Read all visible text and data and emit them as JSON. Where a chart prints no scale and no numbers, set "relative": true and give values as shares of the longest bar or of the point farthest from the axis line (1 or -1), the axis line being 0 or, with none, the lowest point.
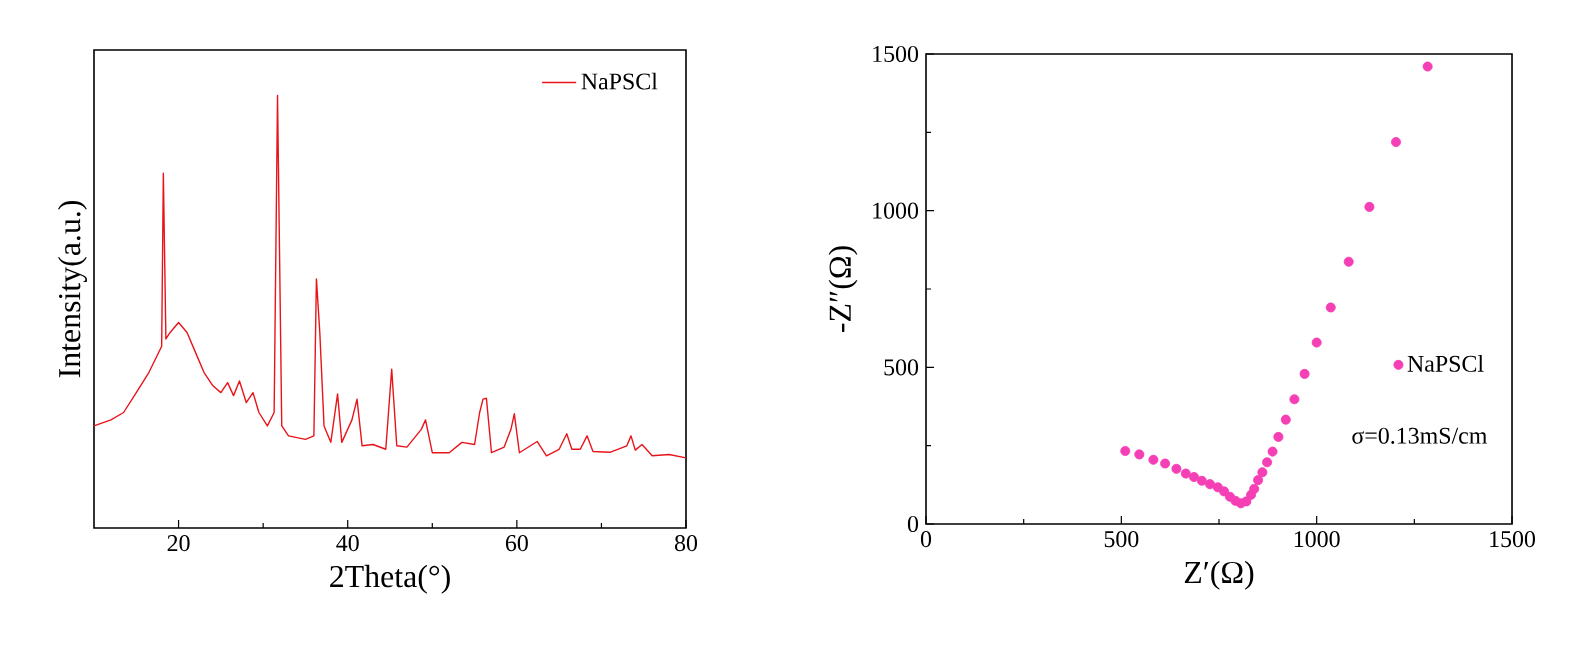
{
  "chart_data": [
    {
      "type": "line",
      "relative": true,
      "xlabel": "2Theta(°)",
      "ylabel": "Intensity(a.u.)",
      "xlim": [
        10,
        80
      ],
      "xticks": [
        20,
        40,
        60,
        80
      ],
      "legend": "top right",
      "tick_labels": "x",
      "marker": "none",
      "line_style": "solid",
      "series": [
        {
          "name": "NaPSCl",
          "color": "#e8141a",
          "x": [
            10,
            12,
            13.5,
            15,
            16.5,
            17.5,
            18.0,
            18.2,
            18.5,
            19,
            20,
            21,
            22,
            23,
            24,
            25,
            25.8,
            26.5,
            27.2,
            28,
            28.8,
            29.5,
            30.5,
            31.3,
            31.7,
            32.2,
            33,
            35,
            36,
            36.3,
            36.7,
            37.2,
            38,
            38.8,
            39.3,
            40.5,
            41.1,
            41.7,
            43,
            44.5,
            45.2,
            45.8,
            47,
            48.7,
            49.2,
            50,
            52,
            53.5,
            55,
            55.6,
            56,
            56.4,
            57,
            58.5,
            59.3,
            59.7,
            60.3,
            62.4,
            63.5,
            65,
            65.9,
            66.5,
            67.5,
            68.3,
            69,
            71,
            73,
            73.5,
            74,
            74.8,
            76,
            78,
            80
          ],
          "values": [
            0.236,
            0.25,
            0.267,
            0.313,
            0.36,
            0.4,
            0.42,
            0.82,
            0.437,
            0.452,
            0.475,
            0.452,
            0.406,
            0.36,
            0.33,
            0.313,
            0.336,
            0.306,
            0.34,
            0.29,
            0.313,
            0.267,
            0.236,
            0.267,
            1.0,
            0.236,
            0.213,
            0.205,
            0.213,
            0.576,
            0.452,
            0.236,
            0.198,
            0.31,
            0.198,
            0.25,
            0.298,
            0.19,
            0.193,
            0.182,
            0.367,
            0.19,
            0.187,
            0.228,
            0.25,
            0.174,
            0.174,
            0.198,
            0.193,
            0.267,
            0.298,
            0.3,
            0.174,
            0.187,
            0.228,
            0.264,
            0.174,
            0.2,
            0.167,
            0.182,
            0.218,
            0.182,
            0.182,
            0.213,
            0.177,
            0.175,
            0.19,
            0.213,
            0.18,
            0.193,
            0.167,
            0.17,
            0.162
          ]
        }
      ]
    },
    {
      "type": "scatter",
      "xlabel": "Z′(Ω)",
      "ylabel": "-Z″(Ω)",
      "xlim": [
        0,
        1500
      ],
      "xticks": [
        0,
        500,
        1000,
        1500
      ],
      "ylim": [
        0,
        1500
      ],
      "yticks": [
        0,
        500,
        1000,
        1500
      ],
      "legend": "bottom right",
      "marker": "circle",
      "annotations": [
        "σ=0.13mS/cm"
      ],
      "series": [
        {
          "name": "NaPSCl",
          "color": "#f53fb5",
          "x": [
            510,
            546,
            582,
            612,
            641,
            665,
            686,
            706,
            727,
            747,
            763,
            778,
            792,
            806,
            820,
            832,
            840,
            850,
            861,
            873,
            887,
            902,
            921,
            943,
            969,
            1000,
            1036,
            1082,
            1135,
            1203,
            1284
          ],
          "values": [
            233,
            222,
            205,
            193,
            176,
            161,
            150,
            138,
            127,
            117,
            104,
            87,
            74,
            66,
            72,
            93,
            112,
            140,
            165,
            197,
            231,
            278,
            333,
            398,
            479,
            579,
            691,
            837,
            1012,
            1219,
            1460
          ]
        }
      ]
    }
  ]
}
